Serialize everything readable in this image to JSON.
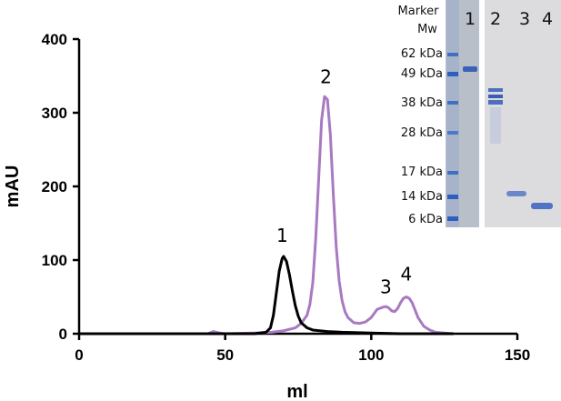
{
  "chart_data": {
    "type": "line",
    "xlabel": "ml",
    "ylabel": "mAU",
    "xlim": [
      0,
      150
    ],
    "ylim": [
      0,
      400
    ],
    "xticks": [
      0,
      50,
      100,
      150
    ],
    "yticks": [
      0,
      100,
      200,
      300,
      400
    ],
    "grid": false,
    "colors": {
      "black_trace": "#000000",
      "purple_trace": "#a979c2"
    },
    "series": [
      {
        "color": "#000000",
        "x": [
          0,
          20,
          40,
          50,
          60,
          64,
          65.5,
          66.5,
          67.5,
          68.5,
          69.5,
          70,
          71,
          72,
          73,
          74,
          75,
          76,
          78,
          80,
          85,
          90,
          100,
          110,
          120,
          128
        ],
        "y": [
          0,
          0,
          0,
          0,
          0,
          2,
          8,
          25,
          55,
          85,
          102,
          105,
          98,
          80,
          58,
          38,
          24,
          15,
          8,
          5,
          3,
          2,
          1,
          0,
          0,
          0
        ]
      },
      {
        "color": "#a979c2",
        "x": [
          13,
          30,
          44,
          46,
          48,
          50,
          60,
          66,
          70,
          74,
          76,
          78,
          79,
          80,
          81,
          82,
          83,
          84,
          85,
          86,
          87,
          88,
          89,
          90,
          91,
          92,
          94,
          96,
          98,
          100,
          102,
          104,
          105,
          106,
          107,
          108,
          109,
          110,
          111,
          112,
          113,
          114,
          115,
          116,
          118,
          120,
          122,
          125,
          128
        ],
        "y": [
          0,
          0,
          0,
          3,
          1,
          0,
          1,
          2,
          4,
          8,
          14,
          25,
          40,
          70,
          130,
          210,
          290,
          322,
          318,
          270,
          190,
          118,
          72,
          45,
          30,
          22,
          15,
          14,
          16,
          22,
          33,
          36,
          37,
          35,
          31,
          30,
          34,
          42,
          48,
          50,
          48,
          42,
          32,
          22,
          10,
          5,
          2,
          1,
          0
        ]
      }
    ],
    "annotations": [
      {
        "text": "1",
        "x": 69.5,
        "y": 125
      },
      {
        "text": "2",
        "x": 84.5,
        "y": 340
      },
      {
        "text": "3",
        "x": 105,
        "y": 55
      },
      {
        "text": "4",
        "x": 112,
        "y": 72
      }
    ],
    "inset_gel": {
      "header_lines": [
        "Marker",
        "Mw"
      ],
      "marker_labels": [
        "62 kDa",
        "49 kDa",
        "38 kDa",
        "28 kDa",
        "17 kDa",
        "14 kDa",
        "6 kDa"
      ],
      "lane_labels": [
        "1",
        "2",
        "3",
        "4"
      ]
    }
  }
}
